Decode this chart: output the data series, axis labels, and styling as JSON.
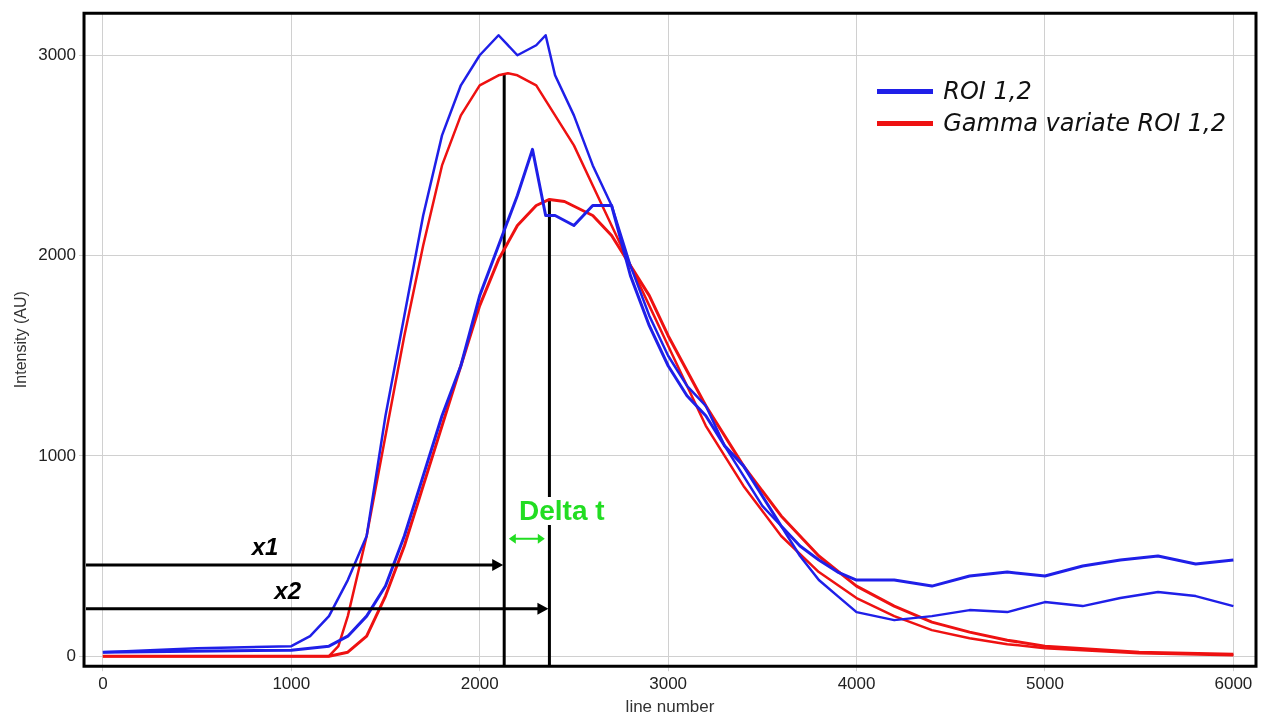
{
  "chart_data": {
    "type": "line",
    "xlabel": "line number",
    "ylabel": "Intensity (AU)",
    "xlim": [
      -100,
      6120
    ],
    "ylim": [
      -50,
      3210
    ],
    "xticks": [
      0,
      1000,
      2000,
      3000,
      4000,
      5000,
      6000
    ],
    "yticks": [
      0,
      1000,
      2000,
      3000
    ],
    "grid": true,
    "legend": "top right",
    "marker": "none",
    "line_style": "solid",
    "series": [
      {
        "name": "ROI 1,2",
        "color": "#1f1fe8",
        "x": [
          0,
          500,
          1000,
          1100,
          1200,
          1300,
          1400,
          1500,
          1600,
          1700,
          1800,
          1900,
          2000,
          2100,
          2200,
          2300,
          2350,
          2400,
          2500,
          2600,
          2700,
          2800,
          2900,
          3000,
          3100,
          3200,
          3300,
          3400,
          3500,
          3600,
          3700,
          3800,
          3900,
          4000,
          4200,
          4400,
          4600,
          4800,
          5000,
          5200,
          5400,
          5600,
          5800,
          6000
        ],
        "values": [
          20,
          40,
          50,
          100,
          200,
          380,
          600,
          1200,
          1700,
          2200,
          2600,
          2850,
          3000,
          3100,
          3000,
          3050,
          3100,
          2900,
          2700,
          2450,
          2250,
          1950,
          1700,
          1500,
          1350,
          1250,
          1050,
          900,
          750,
          650,
          500,
          380,
          300,
          220,
          180,
          200,
          230,
          220,
          270,
          250,
          290,
          320,
          300,
          250
        ]
      },
      {
        "color": "#1f1fe8",
        "x": [
          0,
          1000,
          1200,
          1300,
          1400,
          1500,
          1600,
          1700,
          1800,
          1900,
          2000,
          2100,
          2200,
          2280,
          2350,
          2400,
          2500,
          2600,
          2700,
          2800,
          2900,
          3000,
          3100,
          3200,
          3300,
          3400,
          3500,
          3600,
          3700,
          3800,
          3900,
          4000,
          4200,
          4400,
          4600,
          4800,
          5000,
          5200,
          5400,
          5600,
          5800,
          6000
        ],
        "values": [
          20,
          30,
          50,
          100,
          200,
          350,
          600,
          900,
          1200,
          1450,
          1800,
          2050,
          2300,
          2530,
          2200,
          2200,
          2150,
          2250,
          2250,
          1900,
          1650,
          1450,
          1300,
          1200,
          1050,
          950,
          800,
          650,
          550,
          480,
          420,
          380,
          380,
          350,
          400,
          420,
          400,
          450,
          480,
          500,
          460,
          480
        ]
      },
      {
        "name": "Gamma variate ROI 1,2",
        "color": "#ee1111",
        "x": [
          0,
          1200,
          1250,
          1300,
          1400,
          1500,
          1600,
          1700,
          1800,
          1900,
          2000,
          2100,
          2150,
          2200,
          2300,
          2400,
          2500,
          2600,
          2700,
          2800,
          2900,
          3000,
          3200,
          3400,
          3600,
          3800,
          4000,
          4200,
          4400,
          4600,
          4800,
          5000,
          5500,
          6000
        ],
        "values": [
          0,
          0,
          50,
          200,
          600,
          1100,
          1600,
          2050,
          2450,
          2700,
          2850,
          2900,
          2910,
          2900,
          2850,
          2700,
          2550,
          2350,
          2150,
          1950,
          1750,
          1550,
          1150,
          850,
          600,
          420,
          290,
          200,
          130,
          90,
          60,
          40,
          15,
          5
        ]
      },
      {
        "color": "#ee1111",
        "x": [
          0,
          1200,
          1300,
          1400,
          1500,
          1600,
          1700,
          1800,
          1900,
          2000,
          2100,
          2200,
          2300,
          2370,
          2450,
          2600,
          2700,
          2800,
          2900,
          3000,
          3200,
          3400,
          3600,
          3800,
          4000,
          4200,
          4400,
          4600,
          4800,
          5000,
          5500,
          6000
        ],
        "values": [
          0,
          0,
          20,
          100,
          300,
          550,
          850,
          1150,
          1450,
          1750,
          1980,
          2150,
          2250,
          2280,
          2270,
          2200,
          2100,
          1950,
          1800,
          1600,
          1250,
          950,
          700,
          500,
          350,
          250,
          170,
          120,
          80,
          50,
          20,
          10
        ]
      },
      {
        "type": "line",
        "color": "#000000",
        "x": [
          2130,
          2130
        ],
        "values": [
          -50,
          2910
        ]
      },
      {
        "type": "line",
        "color": "#000000",
        "x": [
          2370,
          2370
        ],
        "values": [
          -50,
          2280
        ]
      }
    ],
    "annotations": [
      "x1",
      "x2",
      "Delta t"
    ]
  }
}
